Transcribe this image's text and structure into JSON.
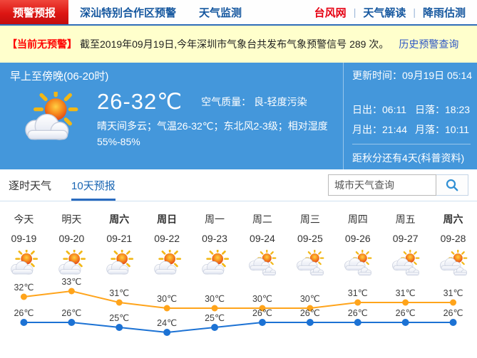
{
  "nav": {
    "tabs": [
      {
        "label": "预警预报",
        "active": true
      },
      {
        "label": "深汕特别合作区预警",
        "active": false
      },
      {
        "label": "天气监测",
        "active": false
      }
    ],
    "links": [
      {
        "label": "台风网",
        "highlight": true
      },
      {
        "label": "天气解读",
        "highlight": false
      },
      {
        "label": "降雨估测",
        "highlight": false
      }
    ]
  },
  "alert_bar": {
    "status": "【当前无预警】",
    "text": "截至2019年09月19日,今年深圳市气象台共发布气象预警信号 289 次。",
    "link": "历史预警查询"
  },
  "current": {
    "period_title": "早上至傍晚(06-20时)",
    "update_time": "更新时间：09月19日 05:14",
    "weather_icon": "sun-cloud",
    "temp_range": "26-32℃",
    "air_quality_label": "空气质量：",
    "air_quality_value": "良-轻度污染",
    "description": "晴天间多云；气温26-32℃；东北风2-3级；相对湿度55%-85%",
    "sunrise_label": "日出：06:11",
    "sunset_label": "日落：18:23",
    "moonrise_label": "月出：21:44",
    "moonset_label": "月落：10:11",
    "countdown": "距秋分还有4天(科普资料)"
  },
  "view_tabs": {
    "hourly": "逐时天气",
    "ten_day": "10天预报"
  },
  "search": {
    "placeholder": "城市天气查询"
  },
  "chart_data": {
    "type": "line",
    "title": "10天预报",
    "categories": [
      "今天",
      "明天",
      "周六",
      "周日",
      "周一",
      "周二",
      "周三",
      "周四",
      "周五",
      "周六"
    ],
    "dates": [
      "09-19",
      "09-20",
      "09-21",
      "09-22",
      "09-23",
      "09-24",
      "09-25",
      "09-26",
      "09-27",
      "09-28"
    ],
    "weekend_bold": [
      false,
      false,
      true,
      true,
      false,
      false,
      false,
      false,
      false,
      true
    ],
    "icons": [
      "sun-cloud",
      "sun-cloud",
      "sun-cloud",
      "sun-cloud",
      "sun-cloud",
      "cloudy",
      "cloudy",
      "cloudy",
      "cloudy",
      "cloudy"
    ],
    "series": [
      {
        "name": "high",
        "color": "#ffa41b",
        "values": [
          32,
          33,
          31,
          30,
          30,
          30,
          30,
          31,
          31,
          31
        ]
      },
      {
        "name": "low",
        "color": "#1c72d4",
        "values": [
          26,
          26,
          25,
          24,
          25,
          26,
          26,
          26,
          26,
          26
        ]
      }
    ],
    "unit": "℃",
    "ylim_high": [
      30,
      33
    ],
    "ylim_low": [
      24,
      26
    ],
    "grid": false,
    "legend": "none"
  },
  "colors": {
    "panel_blue": "#4497db",
    "nav_blue": "#15579f",
    "active_tab_red": "#dd1613",
    "typhoon_red": "#e60012",
    "alert_bg": "#ffffcc",
    "alert_red": "#ff0000",
    "link_blue": "#2d56c5",
    "tab_active_blue": "#1a66b3",
    "high_line": "#ffa41b",
    "low_line": "#1c72d4"
  }
}
